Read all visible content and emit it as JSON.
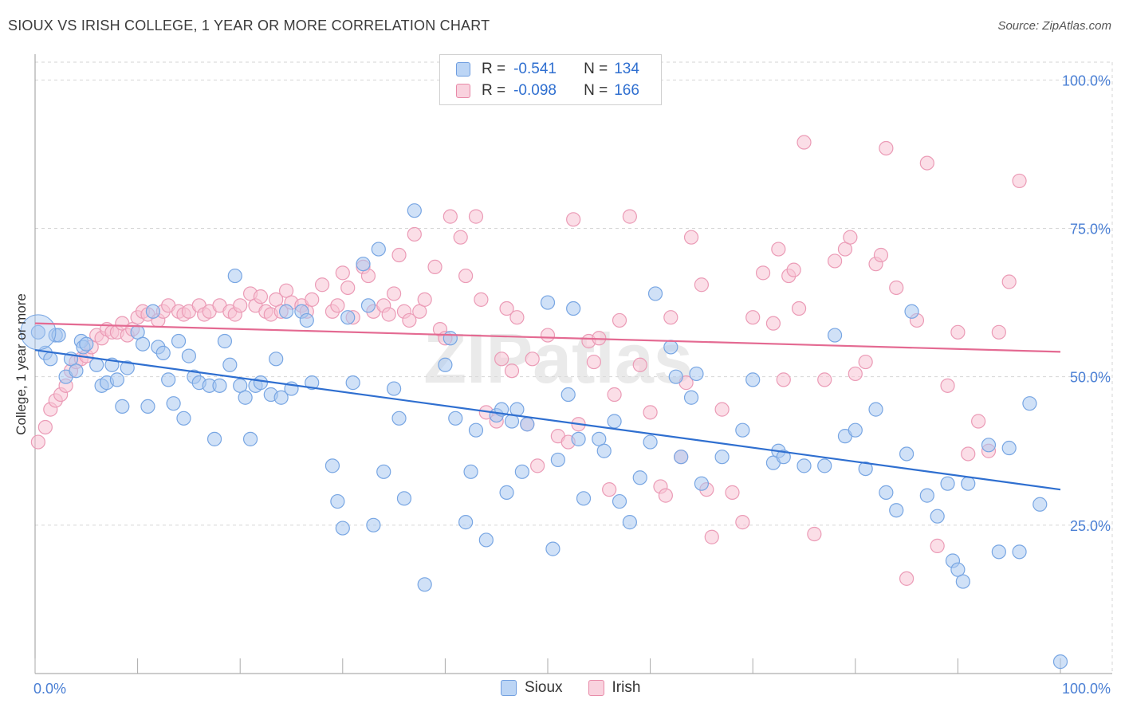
{
  "header": {
    "title": "SIOUX VS IRISH COLLEGE, 1 YEAR OR MORE CORRELATION CHART",
    "source": "Source: ZipAtlas.com"
  },
  "legend": {
    "series": [
      {
        "name": "Sioux",
        "r_label": "R =",
        "r_value": "-0.541",
        "n_label": "N =",
        "n_value": "134",
        "color": "#a9c8f0",
        "border": "#6f9ee0"
      },
      {
        "name": "Irish",
        "r_label": "R =",
        "r_value": "-0.098",
        "n_label": "N =",
        "n_value": "166",
        "color": "#f7c3d3",
        "border": "#e88aa8"
      }
    ]
  },
  "watermark": "ZIPatlas",
  "chart_data": {
    "type": "scatter",
    "title": "SIOUX VS IRISH COLLEGE, 1 YEAR OR MORE CORRELATION CHART",
    "xlabel": "",
    "ylabel": "College, 1 year or more",
    "xlim": [
      0,
      100
    ],
    "ylim": [
      0,
      103
    ],
    "x_tick_labels": [
      "0.0%",
      "100.0%"
    ],
    "y_ticks": [
      25,
      50,
      75,
      100
    ],
    "y_tick_labels": [
      "25.0%",
      "50.0%",
      "75.0%",
      "100.0%"
    ],
    "grid": true,
    "legend_position": "top-center",
    "colors": {
      "Sioux": "#2f6fd0",
      "Irish": "#e46a92",
      "SiouxFill": "#a9c8f0",
      "IrishFill": "#f7c3d3"
    },
    "series": [
      {
        "name": "Sioux",
        "trend": {
          "x": [
            0,
            100
          ],
          "y": [
            54.5,
            31.0
          ]
        },
        "points": [
          [
            0.3,
            57.5
          ],
          [
            1,
            54
          ],
          [
            1.5,
            53
          ],
          [
            2,
            57
          ],
          [
            2.3,
            57
          ],
          [
            3,
            50
          ],
          [
            3.5,
            53
          ],
          [
            4,
            51
          ],
          [
            4.5,
            56
          ],
          [
            4.7,
            55
          ],
          [
            5,
            55.5
          ],
          [
            6,
            52
          ],
          [
            6.5,
            48.5
          ],
          [
            7,
            49
          ],
          [
            7.5,
            52
          ],
          [
            8,
            49.5
          ],
          [
            8.5,
            45
          ],
          [
            9,
            51.5
          ],
          [
            10,
            57.5
          ],
          [
            10.5,
            55.5
          ],
          [
            11,
            45
          ],
          [
            11.5,
            61
          ],
          [
            12,
            55
          ],
          [
            12.5,
            54
          ],
          [
            13,
            49.5
          ],
          [
            13.5,
            45.5
          ],
          [
            14,
            56
          ],
          [
            14.5,
            43
          ],
          [
            15,
            53.5
          ],
          [
            15.5,
            50
          ],
          [
            16,
            49
          ],
          [
            17,
            48.5
          ],
          [
            17.5,
            39.5
          ],
          [
            18,
            48.5
          ],
          [
            18.5,
            56
          ],
          [
            19,
            52
          ],
          [
            19.5,
            67
          ],
          [
            20,
            48.5
          ],
          [
            20.5,
            46.5
          ],
          [
            21,
            39.5
          ],
          [
            21.5,
            48.5
          ],
          [
            22,
            49
          ],
          [
            23,
            47
          ],
          [
            23.5,
            53
          ],
          [
            24,
            46.5
          ],
          [
            24.5,
            61
          ],
          [
            25,
            48
          ],
          [
            26,
            61
          ],
          [
            26.5,
            59.5
          ],
          [
            27,
            49
          ],
          [
            29,
            35
          ],
          [
            29.5,
            29
          ],
          [
            30,
            24.5
          ],
          [
            30.5,
            60
          ],
          [
            31,
            49
          ],
          [
            32,
            69
          ],
          [
            32.5,
            62
          ],
          [
            33,
            25
          ],
          [
            33.5,
            71.5
          ],
          [
            34,
            34
          ],
          [
            35,
            48
          ],
          [
            35.5,
            43
          ],
          [
            36,
            29.5
          ],
          [
            37,
            78
          ],
          [
            38,
            15
          ],
          [
            40,
            52
          ],
          [
            40.5,
            56.5
          ],
          [
            41,
            43
          ],
          [
            42,
            25.5
          ],
          [
            42.5,
            34
          ],
          [
            43,
            41
          ],
          [
            44,
            22.5
          ],
          [
            45,
            43.5
          ],
          [
            45.5,
            44.5
          ],
          [
            46,
            30.5
          ],
          [
            46.5,
            42.5
          ],
          [
            47,
            44.5
          ],
          [
            47.5,
            34
          ],
          [
            48,
            42
          ],
          [
            50,
            62.5
          ],
          [
            50.5,
            21
          ],
          [
            51,
            36
          ],
          [
            52,
            47
          ],
          [
            52.5,
            61.5
          ],
          [
            53,
            39.5
          ],
          [
            53.5,
            29.5
          ],
          [
            55,
            39.5
          ],
          [
            55.5,
            37.5
          ],
          [
            56.5,
            42.5
          ],
          [
            57,
            29
          ],
          [
            58,
            25.5
          ],
          [
            59,
            33
          ],
          [
            60,
            39
          ],
          [
            60.5,
            64
          ],
          [
            62,
            55
          ],
          [
            62.5,
            50
          ],
          [
            63,
            36.5
          ],
          [
            64,
            46.5
          ],
          [
            64.5,
            50.5
          ],
          [
            65,
            32
          ],
          [
            67,
            36.5
          ],
          [
            69,
            41
          ],
          [
            70,
            49.5
          ],
          [
            72,
            35.5
          ],
          [
            72.5,
            37.5
          ],
          [
            73,
            36.5
          ],
          [
            75,
            35
          ],
          [
            77,
            35
          ],
          [
            78,
            57
          ],
          [
            79,
            40
          ],
          [
            80,
            41
          ],
          [
            81,
            34.5
          ],
          [
            82,
            44.5
          ],
          [
            83,
            30.5
          ],
          [
            84,
            27.5
          ],
          [
            85,
            37
          ],
          [
            85.5,
            61
          ],
          [
            87,
            30
          ],
          [
            88,
            26.5
          ],
          [
            89,
            32
          ],
          [
            89.5,
            19
          ],
          [
            90,
            17.5
          ],
          [
            90.5,
            15.5
          ],
          [
            91,
            32
          ],
          [
            93,
            38.5
          ],
          [
            94,
            20.5
          ],
          [
            95,
            38
          ],
          [
            96,
            20.5
          ],
          [
            97,
            45.5
          ],
          [
            98,
            28.5
          ],
          [
            100,
            2
          ]
        ]
      },
      {
        "name": "Irish",
        "trend": {
          "x": [
            0,
            100
          ],
          "y": [
            59.0,
            54.2
          ]
        },
        "points": [
          [
            0.3,
            39
          ],
          [
            1,
            41.5
          ],
          [
            1.5,
            44.5
          ],
          [
            2,
            46
          ],
          [
            2.5,
            47
          ],
          [
            3,
            48.5
          ],
          [
            3.5,
            51
          ],
          [
            4,
            52.5
          ],
          [
            4.5,
            53
          ],
          [
            5,
            53.5
          ],
          [
            5.5,
            55
          ],
          [
            6,
            57
          ],
          [
            6.5,
            56.5
          ],
          [
            7,
            58
          ],
          [
            7.5,
            57.5
          ],
          [
            8,
            57.5
          ],
          [
            8.5,
            59
          ],
          [
            9,
            57
          ],
          [
            9.5,
            58
          ],
          [
            10,
            60
          ],
          [
            10.5,
            61
          ],
          [
            11,
            60.5
          ],
          [
            12,
            59.5
          ],
          [
            12.5,
            61
          ],
          [
            13,
            62
          ],
          [
            14,
            61
          ],
          [
            14.5,
            60.5
          ],
          [
            15,
            61
          ],
          [
            16,
            62
          ],
          [
            16.5,
            60.5
          ],
          [
            17,
            61
          ],
          [
            18,
            62
          ],
          [
            19,
            61
          ],
          [
            19.5,
            60.5
          ],
          [
            20,
            62
          ],
          [
            21,
            64
          ],
          [
            21.5,
            62
          ],
          [
            22,
            63.5
          ],
          [
            22.5,
            61
          ],
          [
            23,
            60.5
          ],
          [
            23.5,
            63
          ],
          [
            24,
            61
          ],
          [
            24.5,
            64.5
          ],
          [
            25,
            62.5
          ],
          [
            26,
            62
          ],
          [
            26.5,
            61
          ],
          [
            27,
            63
          ],
          [
            28,
            65.5
          ],
          [
            29,
            61
          ],
          [
            29.5,
            62
          ],
          [
            30,
            67.5
          ],
          [
            30.5,
            65
          ],
          [
            31,
            60
          ],
          [
            32,
            68.5
          ],
          [
            32.5,
            67
          ],
          [
            33,
            61
          ],
          [
            34,
            62
          ],
          [
            34.5,
            60.5
          ],
          [
            35,
            64
          ],
          [
            35.5,
            70.5
          ],
          [
            36,
            61
          ],
          [
            36.5,
            59.5
          ],
          [
            37,
            74
          ],
          [
            37.5,
            61
          ],
          [
            38,
            63
          ],
          [
            39,
            68.5
          ],
          [
            39.5,
            58
          ],
          [
            40,
            56.5
          ],
          [
            40.5,
            77
          ],
          [
            41.5,
            73.5
          ],
          [
            42,
            67
          ],
          [
            43,
            77
          ],
          [
            43.5,
            63
          ],
          [
            44,
            44
          ],
          [
            45,
            42.5
          ],
          [
            45.5,
            53
          ],
          [
            46,
            61.5
          ],
          [
            46.5,
            51
          ],
          [
            47,
            60
          ],
          [
            48,
            42
          ],
          [
            48.5,
            53
          ],
          [
            49,
            35
          ],
          [
            50,
            57
          ],
          [
            51,
            40
          ],
          [
            52,
            39
          ],
          [
            52.5,
            76.5
          ],
          [
            53,
            42
          ],
          [
            54,
            56
          ],
          [
            54.5,
            52.5
          ],
          [
            55,
            56.5
          ],
          [
            56,
            31
          ],
          [
            56.5,
            47
          ],
          [
            57,
            59.5
          ],
          [
            58,
            77
          ],
          [
            59,
            52
          ],
          [
            60,
            44
          ],
          [
            61,
            31.5
          ],
          [
            61.5,
            30
          ],
          [
            62,
            60
          ],
          [
            63,
            36.5
          ],
          [
            63.5,
            49
          ],
          [
            64,
            73.5
          ],
          [
            65,
            65.5
          ],
          [
            65.5,
            31
          ],
          [
            66,
            23
          ],
          [
            67,
            44.5
          ],
          [
            68,
            30.5
          ],
          [
            69,
            25.5
          ],
          [
            70,
            60
          ],
          [
            71,
            67.5
          ],
          [
            72,
            59
          ],
          [
            72.5,
            71.5
          ],
          [
            73,
            49.5
          ],
          [
            73.5,
            67
          ],
          [
            74,
            68
          ],
          [
            74.5,
            61.5
          ],
          [
            75,
            89.5
          ],
          [
            76,
            23.5
          ],
          [
            77,
            49.5
          ],
          [
            78,
            69.5
          ],
          [
            79,
            71.5
          ],
          [
            79.5,
            73.5
          ],
          [
            80,
            50.5
          ],
          [
            81,
            52.5
          ],
          [
            82,
            69
          ],
          [
            82.5,
            70.5
          ],
          [
            83,
            88.5
          ],
          [
            84,
            65
          ],
          [
            85,
            16
          ],
          [
            86,
            59.5
          ],
          [
            87,
            86
          ],
          [
            88,
            21.5
          ],
          [
            89,
            48.5
          ],
          [
            90,
            57.5
          ],
          [
            91,
            37
          ],
          [
            92,
            42.5
          ],
          [
            93,
            37.5
          ],
          [
            94,
            57.5
          ],
          [
            95,
            66
          ],
          [
            96,
            83
          ]
        ]
      }
    ]
  }
}
